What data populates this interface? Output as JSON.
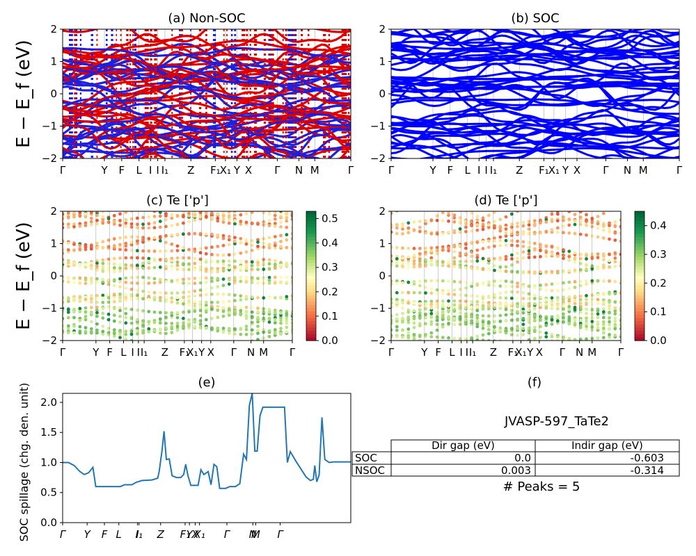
{
  "kpoint_labels": [
    "Γ",
    "Y",
    "F",
    "L",
    "I",
    "I",
    "I₁",
    "Z",
    "F₁",
    "X₁",
    "Y",
    "X",
    "Γ",
    "N",
    "M",
    "Γ"
  ],
  "kpoint_label_positions": [
    0,
    0.145,
    0.205,
    0.265,
    0.305,
    0.33,
    0.355,
    0.445,
    0.53,
    0.565,
    0.605,
    0.645,
    0.745,
    0.82,
    0.875,
    1.0
  ],
  "panels": {
    "a": {
      "title": "(a) Non-SOC",
      "ylabel": "E − E_f (eV)"
    },
    "b": {
      "title": "(b) SOC"
    },
    "c": {
      "title": "(c)  Te ['p']",
      "ylabel": "E − E_f (eV)",
      "colorbar_ticks": [
        "0.0",
        "0.1",
        "0.2",
        "0.3",
        "0.4",
        "0.5"
      ]
    },
    "d": {
      "title": "(d) Te ['p']",
      "colorbar_ticks": [
        "0.0",
        "0.1",
        "0.2",
        "0.3",
        "0.4"
      ]
    },
    "e": {
      "title": "(e)",
      "ylabel": "SOC spillage (chg. den. unit)"
    },
    "f": {
      "title": "(f)"
    }
  },
  "energy_ticks": [
    "2",
    "1",
    "0",
    "−1",
    "−2"
  ],
  "table": {
    "title": "JVASP-597_TaTe2",
    "col_headers": [
      "Dir gap (eV)",
      "Indir gap (eV)"
    ],
    "rows": [
      {
        "label": "SOC",
        "dir": "0.0",
        "indir": "-0.603"
      },
      {
        "label": "NSOC",
        "dir": "0.003",
        "indir": "-0.314"
      }
    ],
    "peaks": "# Peaks = 5"
  },
  "colors": {
    "non_soc_a": "#e00000",
    "non_soc_b": "#1f1fe0",
    "soc": "#0000ff",
    "spillage_line": "#1f77b4"
  },
  "chart_data": [
    {
      "type": "line",
      "panel": "a",
      "title": "(a) Non-SOC",
      "ylabel": "E − E_f (eV)",
      "ylim": [
        -2,
        2
      ],
      "series": [
        {
          "name": "",
          "color": "red/blue",
          "values": []
        }
      ]
    },
    {
      "type": "line",
      "panel": "b",
      "title": "(b) SOC",
      "ylim": [
        -2,
        2
      ],
      "series": [
        {
          "name": "",
          "color": "blue",
          "values": []
        }
      ]
    },
    {
      "type": "scatter",
      "panel": "c",
      "title": "(c)  Te ['p']",
      "ylim": [
        -2,
        2
      ],
      "colorbar_range": [
        0,
        0.53
      ]
    },
    {
      "type": "scatter",
      "panel": "d",
      "title": "(d) Te ['p']",
      "ylim": [
        -2,
        2
      ],
      "colorbar_range": [
        0,
        0.45
      ]
    },
    {
      "type": "line",
      "panel": "e",
      "title": "(e)",
      "ylabel": "SOC spillage (chg. den. unit)",
      "ylim": [
        0,
        2.15
      ],
      "yticks": [
        "0.0",
        "0.5",
        "1.0",
        "1.5",
        "2.0"
      ],
      "x_tick_labels": [
        "Γ",
        "Y",
        "F",
        "L",
        "I",
        "I₁",
        "Z",
        "F₁",
        "Y",
        "X",
        "X₁",
        "Γ",
        "N",
        "M",
        "Γ"
      ],
      "x_tick_positions": [
        0,
        0.085,
        0.145,
        0.195,
        0.26,
        0.265,
        0.34,
        0.425,
        0.44,
        0.46,
        0.475,
        0.57,
        0.66,
        0.67,
        0.755
      ],
      "series": [
        {
          "name": "",
          "points": [
            [
              0,
              1.0
            ],
            [
              0.02,
              1.0
            ],
            [
              0.04,
              0.95
            ],
            [
              0.06,
              0.85
            ],
            [
              0.075,
              0.8
            ],
            [
              0.09,
              0.83
            ],
            [
              0.105,
              0.92
            ],
            [
              0.115,
              0.6
            ],
            [
              0.16,
              0.6
            ],
            [
              0.2,
              0.6
            ],
            [
              0.215,
              0.63
            ],
            [
              0.24,
              0.63
            ],
            [
              0.255,
              0.67
            ],
            [
              0.275,
              0.7
            ],
            [
              0.31,
              0.71
            ],
            [
              0.33,
              0.74
            ],
            [
              0.335,
              0.85
            ],
            [
              0.345,
              1.2
            ],
            [
              0.352,
              1.52
            ],
            [
              0.36,
              1.05
            ],
            [
              0.37,
              1.06
            ],
            [
              0.38,
              0.78
            ],
            [
              0.395,
              0.75
            ],
            [
              0.41,
              0.75
            ],
            [
              0.42,
              0.8
            ],
            [
              0.427,
              0.97
            ],
            [
              0.435,
              0.78
            ],
            [
              0.445,
              0.62
            ],
            [
              0.47,
              0.62
            ],
            [
              0.48,
              0.88
            ],
            [
              0.49,
              0.8
            ],
            [
              0.505,
              0.85
            ],
            [
              0.515,
              0.63
            ],
            [
              0.525,
              0.97
            ],
            [
              0.535,
              0.93
            ],
            [
              0.545,
              0.57
            ],
            [
              0.565,
              0.57
            ],
            [
              0.58,
              0.6
            ],
            [
              0.6,
              0.6
            ],
            [
              0.615,
              0.65
            ],
            [
              0.628,
              1.14
            ],
            [
              0.638,
              1.05
            ],
            [
              0.648,
              1.95
            ],
            [
              0.658,
              2.15
            ],
            [
              0.667,
              1.19
            ],
            [
              0.675,
              1.19
            ],
            [
              0.685,
              1.78
            ],
            [
              0.695,
              1.92
            ],
            [
              0.76,
              1.92
            ],
            [
              0.77,
              1.92
            ],
            [
              0.78,
              1.0
            ],
            [
              0.79,
              1.18
            ],
            [
              0.81,
              1.02
            ],
            [
              0.83,
              0.87
            ],
            [
              0.845,
              0.76
            ],
            [
              0.86,
              0.7
            ],
            [
              0.87,
              0.72
            ],
            [
              0.875,
              0.95
            ],
            [
              0.882,
              0.68
            ],
            [
              0.89,
              0.79
            ],
            [
              0.9,
              1.75
            ],
            [
              0.91,
              1.05
            ],
            [
              0.925,
              1.0
            ],
            [
              0.94,
              1.01
            ],
            [
              1.0,
              1.01
            ]
          ]
        }
      ]
    },
    {
      "type": "table",
      "panel": "f",
      "title": "JVASP-597_TaTe2"
    }
  ]
}
